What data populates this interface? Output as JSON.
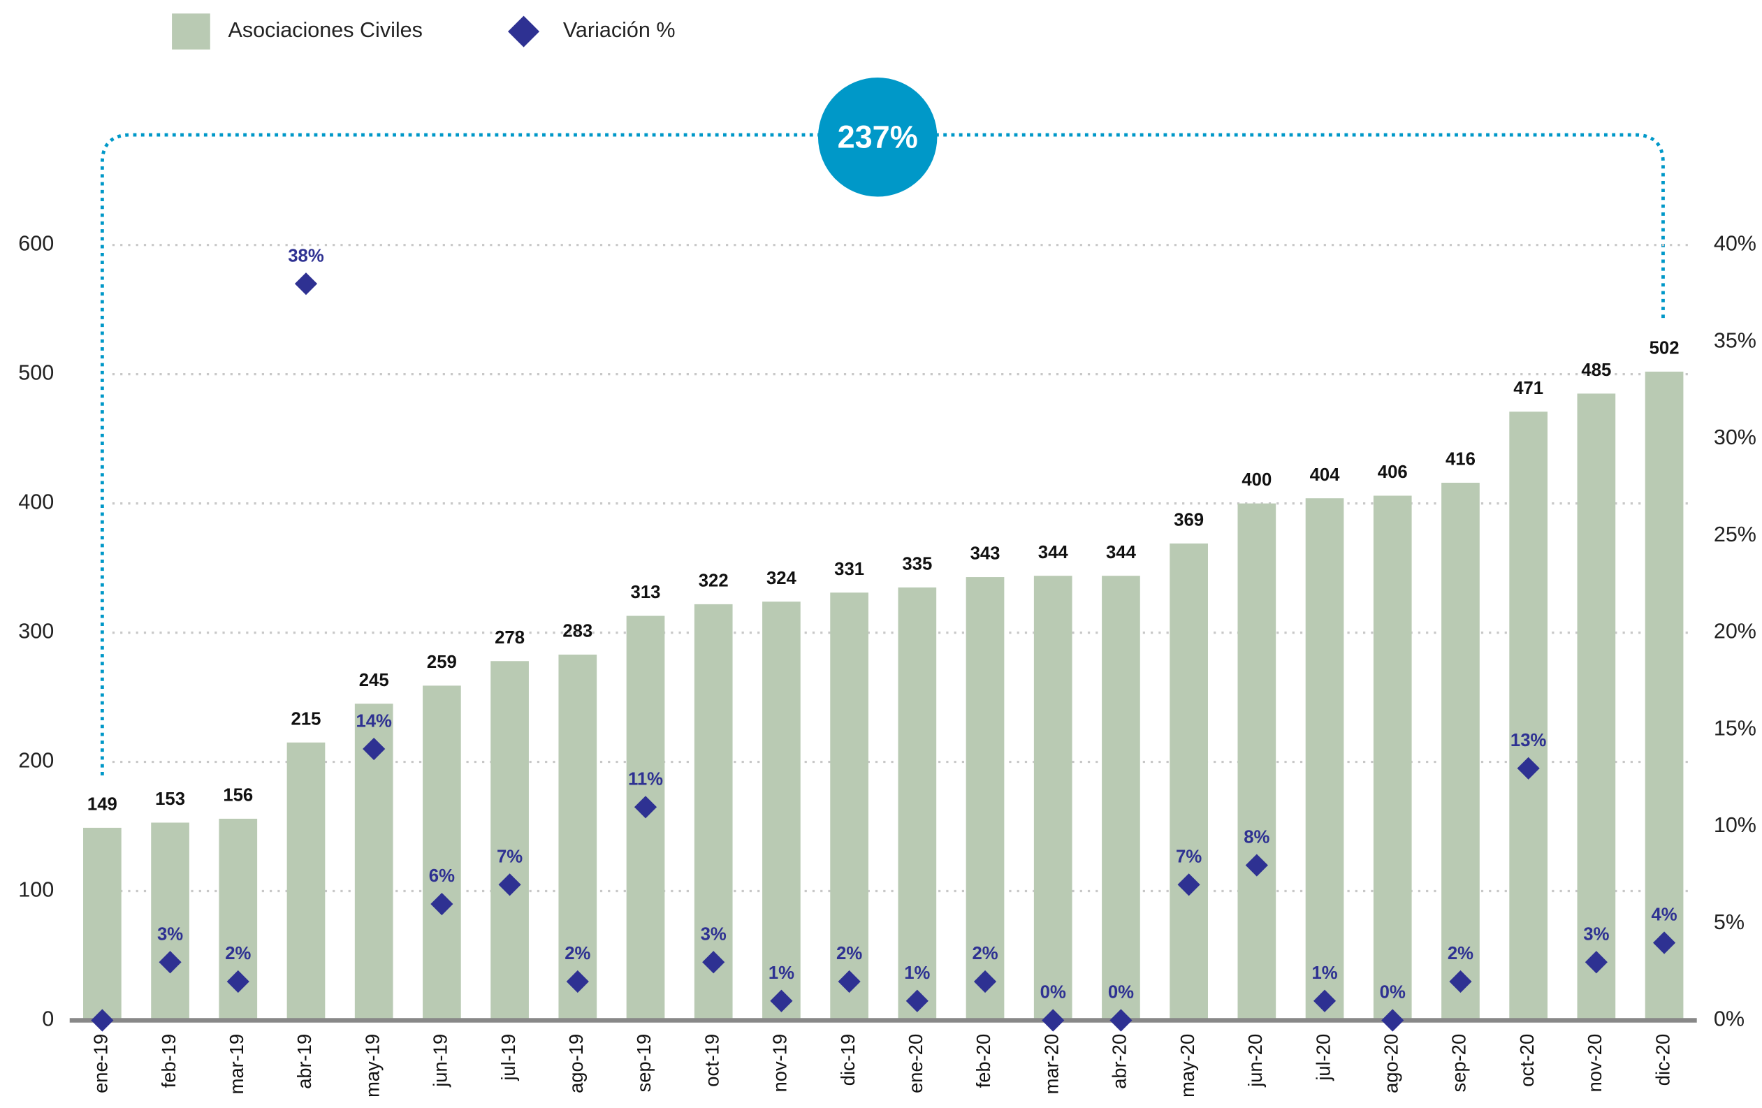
{
  "chart_data": {
    "type": "bar",
    "categories": [
      "ene-19",
      "feb-19",
      "mar-19",
      "abr-19",
      "may-19",
      "jun-19",
      "jul-19",
      "ago-19",
      "sep-19",
      "oct-19",
      "nov-19",
      "dic-19",
      "ene-20",
      "feb-20",
      "mar-20",
      "abr-20",
      "may-20",
      "jun-20",
      "jul-20",
      "ago-20",
      "sep-20",
      "oct-20",
      "nov-20",
      "dic-20"
    ],
    "series": [
      {
        "name": "Asociaciones Civiles",
        "color": "#b9cab3",
        "type": "bar",
        "values": [
          149,
          153,
          156,
          215,
          245,
          259,
          278,
          283,
          313,
          322,
          324,
          331,
          335,
          343,
          344,
          344,
          369,
          400,
          404,
          406,
          416,
          471,
          485,
          502
        ]
      },
      {
        "name": "Variación %",
        "color": "#2e3192",
        "type": "scatter",
        "axis": "y2",
        "values": [
          0,
          3,
          2,
          38,
          14,
          6,
          7,
          2,
          11,
          3,
          1,
          2,
          1,
          2,
          0,
          0,
          7,
          8,
          1,
          0,
          2,
          13,
          3,
          4
        ],
        "value_labels": [
          null,
          "3%",
          "2%",
          "38%",
          "14%",
          "6%",
          "7%",
          "2%",
          "11%",
          "3%",
          "1%",
          "2%",
          "1%",
          "2%",
          "0%",
          "0%",
          "7%",
          "8%",
          "1%",
          "0%",
          "2%",
          "13%",
          "3%",
          "4%"
        ]
      }
    ],
    "ylim": [
      0,
      600
    ],
    "yticks": [
      0,
      100,
      200,
      300,
      400,
      500,
      600
    ],
    "y2lim": [
      0,
      40
    ],
    "y2ticks": [
      {
        "value": 0,
        "label": "0%"
      },
      {
        "value": 5,
        "label": "5%"
      },
      {
        "value": 10,
        "label": "10%"
      },
      {
        "value": 15,
        "label": "15%"
      },
      {
        "value": 20,
        "label": "20%"
      },
      {
        "value": 25,
        "label": "25%"
      },
      {
        "value": 30,
        "label": "30%"
      },
      {
        "value": 35,
        "label": "35%"
      },
      {
        "value": 40,
        "label": "40%"
      }
    ],
    "grid": true,
    "annotation": "237%"
  }
}
